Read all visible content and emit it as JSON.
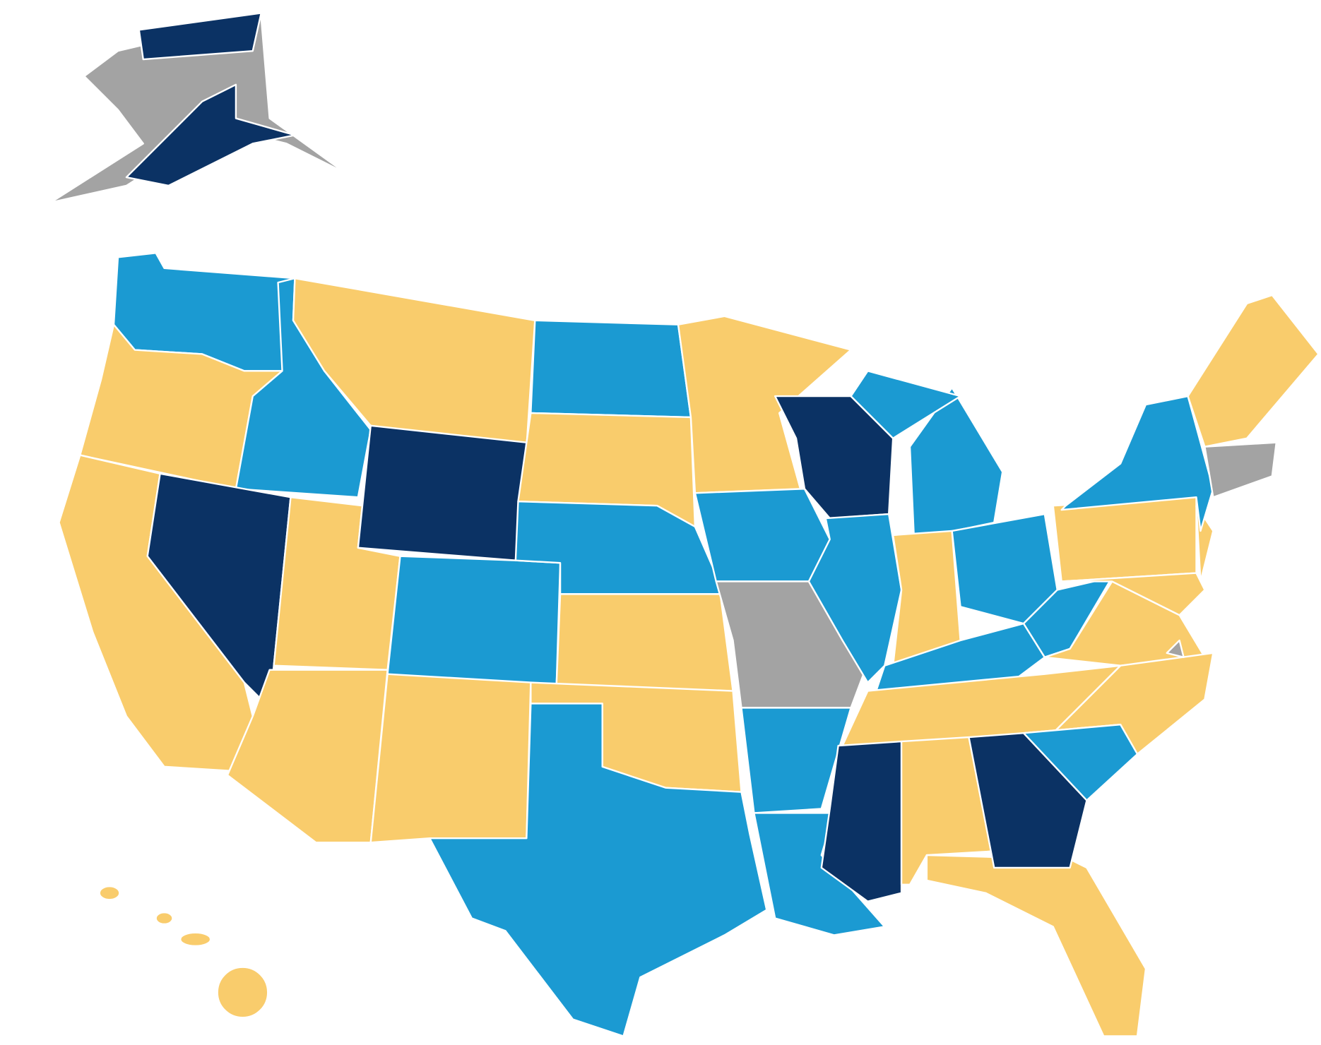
{
  "fills": [
    "#f9cc6c",
    "#1b9ad2",
    "#0b3264",
    "#a3a3a3"
  ]
}
